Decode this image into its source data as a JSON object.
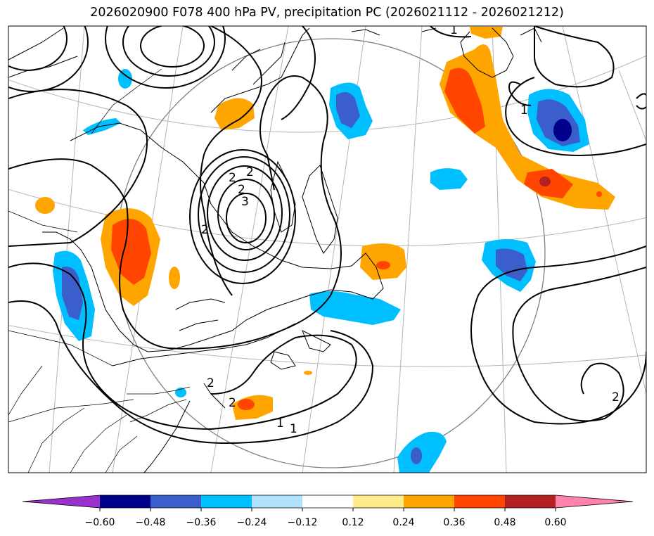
{
  "title": "2026020900 F078 400 hPa PV, precipitation PC (2026021112 - 2026021212)",
  "colorbar": {
    "levels": [
      "−0.60",
      "−0.48",
      "−0.36",
      "−0.24",
      "−0.12",
      "0.12",
      "0.24",
      "0.36",
      "0.48",
      "0.60"
    ],
    "colors": [
      "#9932cc",
      "#00008b",
      "#3a5fcd",
      "#00bfff",
      "#b0e2ff",
      "#ffffff",
      "#ffeb8a",
      "#ffa500",
      "#ff4500",
      "#b22222",
      "#ff83aa"
    ]
  },
  "contour_labels": [
    "1",
    "1",
    "2",
    "2",
    "2",
    "3",
    "2",
    "2",
    "2",
    "1",
    "1",
    "2"
  ]
}
